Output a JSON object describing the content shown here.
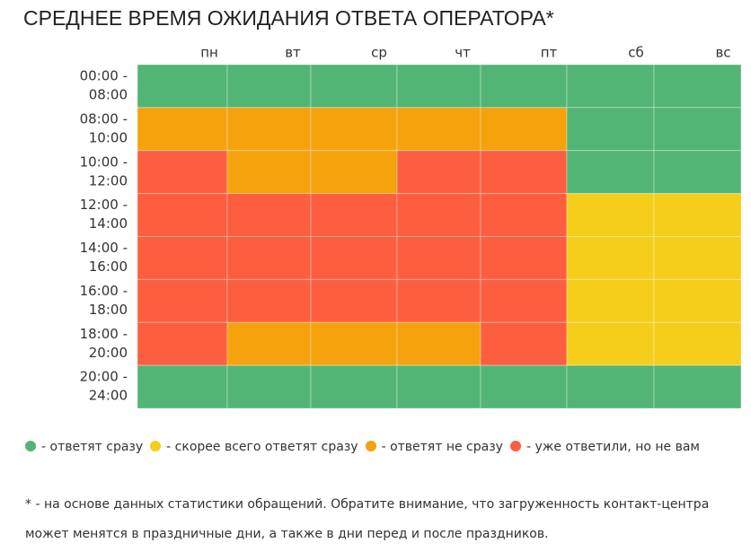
{
  "title": "СРЕДНЕЕ ВРЕМЯ ОЖИДАНИЯ ОТВЕТА ОПЕРАТОРА*",
  "days": [
    "пн",
    "вт",
    "ср",
    "чт",
    "пт",
    "сб",
    "вс"
  ],
  "slots": [
    {
      "from": "00:00 -",
      "to": "08:00"
    },
    {
      "from": "08:00 -",
      "to": "10:00"
    },
    {
      "from": "10:00 -",
      "to": "12:00"
    },
    {
      "from": "12:00 -",
      "to": "14:00"
    },
    {
      "from": "14:00 -",
      "to": "16:00"
    },
    {
      "from": "16:00 -",
      "to": "18:00"
    },
    {
      "from": "18:00 -",
      "to": "20:00"
    },
    {
      "from": "20:00 -",
      "to": "24:00"
    }
  ],
  "grid": [
    [
      0,
      0,
      0,
      0,
      0,
      0,
      0
    ],
    [
      2,
      2,
      2,
      2,
      2,
      0,
      0
    ],
    [
      3,
      2,
      2,
      3,
      3,
      0,
      0
    ],
    [
      3,
      3,
      3,
      3,
      3,
      1,
      1
    ],
    [
      3,
      3,
      3,
      3,
      3,
      1,
      1
    ],
    [
      3,
      3,
      3,
      3,
      3,
      1,
      1
    ],
    [
      3,
      2,
      2,
      2,
      3,
      1,
      1
    ],
    [
      0,
      0,
      0,
      0,
      0,
      0,
      0
    ]
  ],
  "legend": [
    {
      "color": "#52b575",
      "label": "- ответят сразу"
    },
    {
      "color": "#f5cd1b",
      "label": "- скорее всего ответят сразу"
    },
    {
      "color": "#f5a20c",
      "label": "- ответят не сразу"
    },
    {
      "color": "#fd5e3f",
      "label": "- уже ответили, но не вам"
    }
  ],
  "footnote": "* - на основе данных статистики обращений. Обратите внимание, что загруженность контакт-центра может менятся в праздничные дни, а также в дни перед и после праздников."
}
